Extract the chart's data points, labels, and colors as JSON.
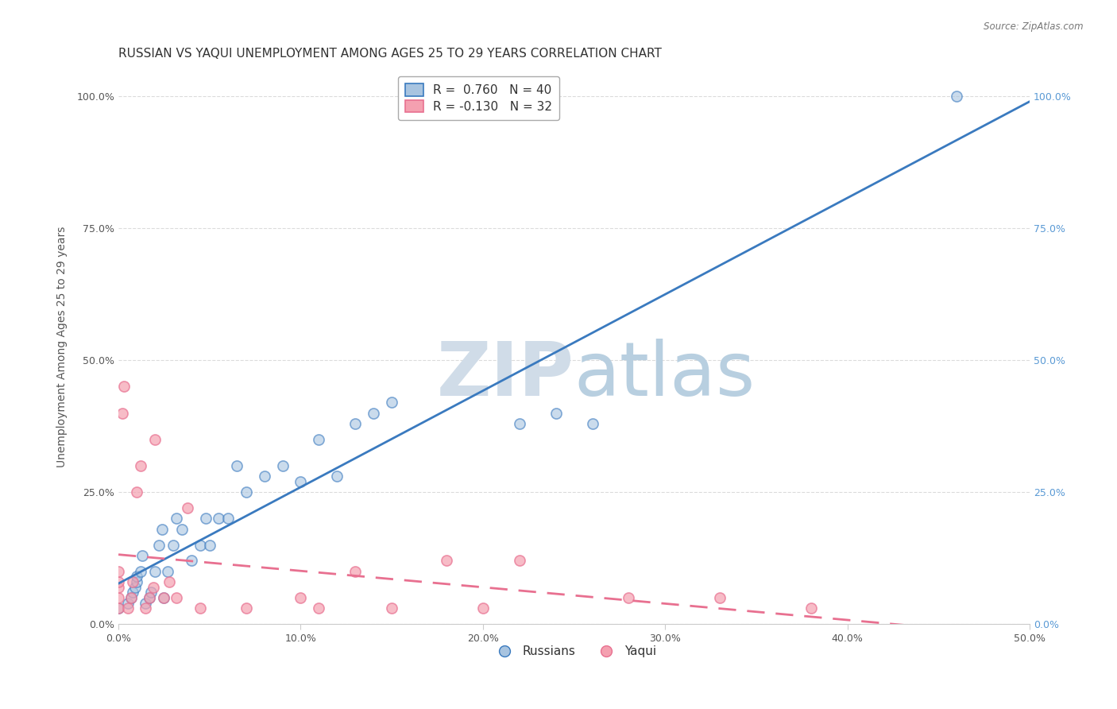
{
  "title": "RUSSIAN VS YAQUI UNEMPLOYMENT AMONG AGES 25 TO 29 YEARS CORRELATION CHART",
  "source": "Source: ZipAtlas.com",
  "ylabel_label": "Unemployment Among Ages 25 to 29 years",
  "xlim": [
    0.0,
    0.5
  ],
  "ylim": [
    0.0,
    1.05
  ],
  "legend_entries": [
    {
      "label": "Russians",
      "color": "#a8c4e0",
      "edge_color": "#3a7abf",
      "R": 0.76,
      "N": 40
    },
    {
      "label": "Yaqui",
      "color": "#f4a0b0",
      "edge_color": "#e87090",
      "R": -0.13,
      "N": 32
    }
  ],
  "russian_x": [
    0.0,
    0.005,
    0.007,
    0.008,
    0.009,
    0.01,
    0.01,
    0.012,
    0.013,
    0.015,
    0.017,
    0.018,
    0.02,
    0.022,
    0.024,
    0.025,
    0.027,
    0.03,
    0.032,
    0.035,
    0.04,
    0.045,
    0.048,
    0.05,
    0.055,
    0.06,
    0.065,
    0.07,
    0.08,
    0.09,
    0.1,
    0.11,
    0.12,
    0.13,
    0.14,
    0.15,
    0.22,
    0.24,
    0.26,
    0.46
  ],
  "russian_y": [
    0.03,
    0.04,
    0.05,
    0.06,
    0.07,
    0.08,
    0.09,
    0.1,
    0.13,
    0.04,
    0.05,
    0.06,
    0.1,
    0.15,
    0.18,
    0.05,
    0.1,
    0.15,
    0.2,
    0.18,
    0.12,
    0.15,
    0.2,
    0.15,
    0.2,
    0.2,
    0.3,
    0.25,
    0.28,
    0.3,
    0.27,
    0.35,
    0.28,
    0.38,
    0.4,
    0.42,
    0.38,
    0.4,
    0.38,
    1.0
  ],
  "yaqui_x": [
    0.0,
    0.0,
    0.0,
    0.0,
    0.0,
    0.002,
    0.003,
    0.005,
    0.007,
    0.008,
    0.01,
    0.012,
    0.015,
    0.017,
    0.019,
    0.02,
    0.025,
    0.028,
    0.032,
    0.038,
    0.045,
    0.07,
    0.1,
    0.11,
    0.13,
    0.15,
    0.18,
    0.2,
    0.22,
    0.28,
    0.33,
    0.38
  ],
  "yaqui_y": [
    0.03,
    0.05,
    0.07,
    0.08,
    0.1,
    0.4,
    0.45,
    0.03,
    0.05,
    0.08,
    0.25,
    0.3,
    0.03,
    0.05,
    0.07,
    0.35,
    0.05,
    0.08,
    0.05,
    0.22,
    0.03,
    0.03,
    0.05,
    0.03,
    0.1,
    0.03,
    0.12,
    0.03,
    0.12,
    0.05,
    0.05,
    0.03
  ],
  "russian_line_color": "#3a7abf",
  "yaqui_line_color": "#e87090",
  "watermark_zip_color": "#d0dce8",
  "watermark_atlas_color": "#b8cfe0",
  "background_color": "#ffffff",
  "grid_color": "#cccccc",
  "title_fontsize": 11,
  "axis_label_fontsize": 10,
  "tick_fontsize": 9,
  "right_tick_color": "#5a9ad5",
  "source_color": "#777777"
}
